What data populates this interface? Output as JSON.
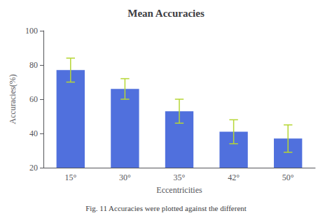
{
  "chart_data": {
    "type": "bar",
    "title": "Mean Accuracies",
    "x_label": "Eccentricities",
    "y_label": "Accuracies(%)",
    "caption": "Fig. 11 Accuracies were plotted against the different",
    "categories": [
      "15°",
      "30°",
      "35°",
      "42°",
      "50°"
    ],
    "values": [
      77,
      66,
      53,
      41,
      37
    ],
    "errors": [
      7,
      6,
      7,
      7,
      8
    ],
    "ylim": [
      20,
      100
    ],
    "yticks": [
      20,
      40,
      60,
      80,
      100
    ],
    "grid": false
  }
}
